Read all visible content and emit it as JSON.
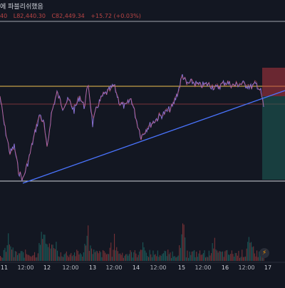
{
  "header": {
    "status_text": "에 파블리쉬했음",
    "ohlc_prefix": "40",
    "ohlc_values": [
      "L82,440.30",
      "C82,449.34",
      "+15.72 (+0.03%)"
    ]
  },
  "time_axis": {
    "labels": [
      "11",
      "12:00",
      "12",
      "12:00",
      "13",
      "12:00",
      "14",
      "12:00",
      "15",
      "12:00",
      "16",
      "12:00",
      "17"
    ]
  },
  "colors": {
    "background": "#131722",
    "horizontal_line_upper": "#f0c150",
    "horizontal_line_mid": "#c0474a",
    "horizontal_line_lower": "#d1d4dc",
    "trendline": "#4a74ff",
    "price_line": "#8a72d4",
    "short_zone_red": "#b2353e",
    "short_zone_green": "#1e5f58",
    "volume_up": "#26a69a",
    "volume_down": "#ef5350"
  },
  "icons": {
    "badge": "lightning-icon"
  }
}
